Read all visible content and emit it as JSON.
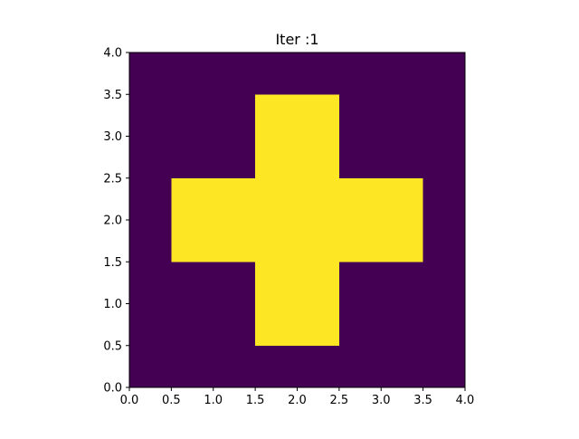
{
  "chart_data": {
    "type": "heatmap",
    "title": "Iter :1",
    "xlabel": "",
    "ylabel": "",
    "xlim": [
      0,
      4
    ],
    "ylim": [
      0,
      4
    ],
    "x_ticks": [
      "0.0",
      "0.5",
      "1.0",
      "1.5",
      "2.0",
      "2.5",
      "3.0",
      "3.5",
      "4.0"
    ],
    "y_ticks": [
      "0.0",
      "0.5",
      "1.0",
      "1.5",
      "2.0",
      "2.5",
      "3.0",
      "3.5",
      "4.0"
    ],
    "grid": false,
    "colormap": "viridis",
    "colors": {
      "low": "#440154",
      "high": "#fde725"
    },
    "cells": [
      {
        "x0": 1.5,
        "x1": 2.5,
        "y0": 2.5,
        "y1": 3.5,
        "value": 1
      },
      {
        "x0": 0.5,
        "x1": 3.5,
        "y0": 1.5,
        "y1": 2.5,
        "value": 1
      },
      {
        "x0": 1.5,
        "x1": 2.5,
        "y0": 0.5,
        "y1": 1.5,
        "value": 1
      }
    ]
  }
}
